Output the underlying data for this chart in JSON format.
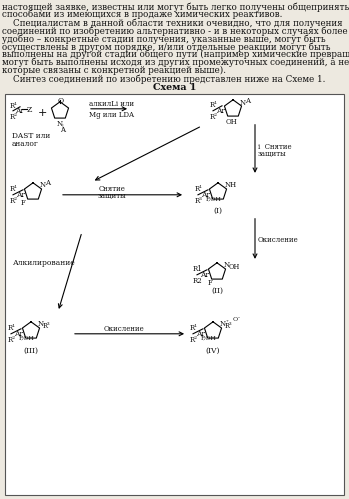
{
  "bg_color": "#ede9e0",
  "box_bg": "#ffffff",
  "text_color": "#111111",
  "p1": "настоящей заявке, известны или могут быть легко получены общепринятыми\nспособами из имеющихся в продаже химических реактивов.",
  "p2a": "    Специалистам в данной области техники очевидно, что для получения",
  "p2b": "соединений по изобретению альтернативно - и в некоторых случаях более",
  "p2c": "удобно – конкретные стадии получения, указанные выше, могут быть",
  "p2d": "осуществлены в другом порядке, и/или отдельные реакции могут быть",
  "p2e": "выполнены на другой стадии общего пути (например химические превращения",
  "p2f": "могут быть выполнены исходя из других промежуточных соединений, а не тех,",
  "p2g": "которые связаны с конкретной реакцией выше).",
  "p3": "    Синтез соединений по изобретению представлен ниже на Схеме 1.",
  "scheme_title": "Схема 1",
  "lbl_alkyl_li": "алкилLi или",
  "lbl_mg_lda": "Mg или LDA",
  "lbl_dast": "DAST или",
  "lbl_analog": "аналог",
  "lbl_snyatie_i": "i  Снятие",
  "lbl_snyatie_z": "защиты",
  "lbl_snyatie2a": "Снятие",
  "lbl_snyatie2b": "защиты",
  "lbl_okisl1": "Окисление",
  "lbl_alkyl": "Алкилирование",
  "lbl_okisl2": "Окисление",
  "lbl_I": "(I)",
  "lbl_II": "(II)",
  "lbl_III": "(III)",
  "lbl_IV": "(IV)"
}
